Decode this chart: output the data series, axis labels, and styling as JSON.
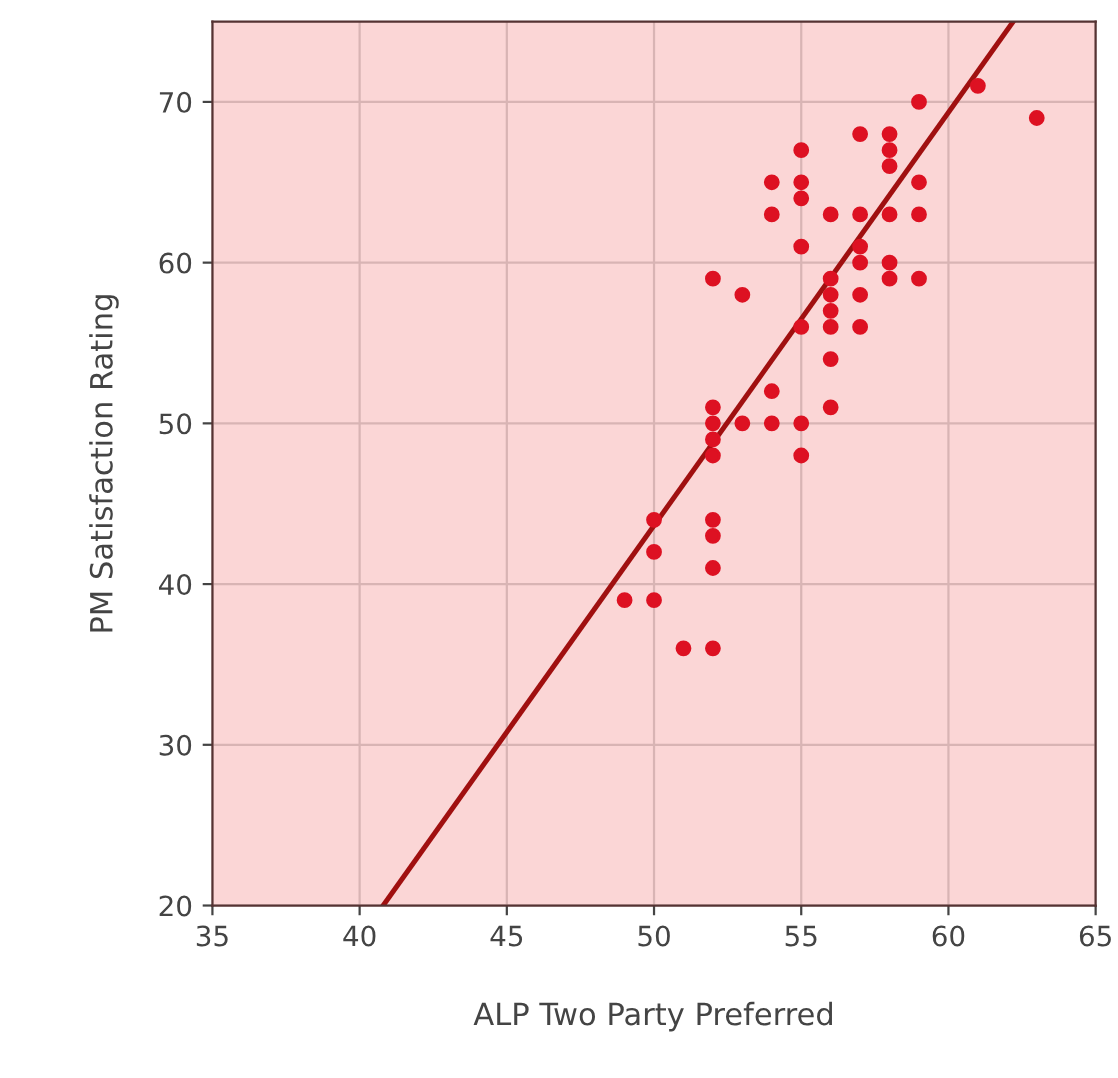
{
  "chart_data": {
    "type": "scatter",
    "xlabel": "ALP Two Party Preferred",
    "ylabel": "PM Satisfaction Rating",
    "xlim": [
      35,
      65
    ],
    "xticks": [
      35,
      40,
      45,
      50,
      55,
      60,
      65
    ],
    "ylim": [
      20,
      75
    ],
    "yticks": [
      20,
      30,
      40,
      50,
      60,
      70
    ],
    "grid": true,
    "series": [
      {
        "marker": "circle",
        "color": "#dd1122",
        "x": [
          49,
          50,
          50,
          50,
          51,
          52,
          52,
          52,
          52,
          52,
          52,
          52,
          52,
          52,
          53,
          53,
          54,
          54,
          54,
          54,
          55,
          55,
          55,
          55,
          55,
          55,
          55,
          56,
          56,
          56,
          56,
          56,
          56,
          56,
          57,
          57,
          57,
          57,
          57,
          57,
          58,
          58,
          58,
          58,
          58,
          58,
          59,
          59,
          59,
          59,
          61,
          63
        ],
        "values": [
          39,
          44,
          42,
          39,
          36,
          36,
          59,
          51,
          50,
          49,
          48,
          44,
          43,
          41,
          58,
          50,
          65,
          63,
          52,
          50,
          67,
          65,
          64,
          61,
          56,
          50,
          48,
          63,
          59,
          58,
          57,
          56,
          54,
          51,
          68,
          63,
          61,
          60,
          58,
          56,
          68,
          67,
          66,
          63,
          60,
          59,
          70,
          65,
          63,
          59,
          71,
          69
        ]
      },
      {
        "type": "line",
        "color": "#a01010",
        "x": [
          40.8,
          62.2
        ],
        "values": [
          20,
          75
        ]
      }
    ]
  }
}
